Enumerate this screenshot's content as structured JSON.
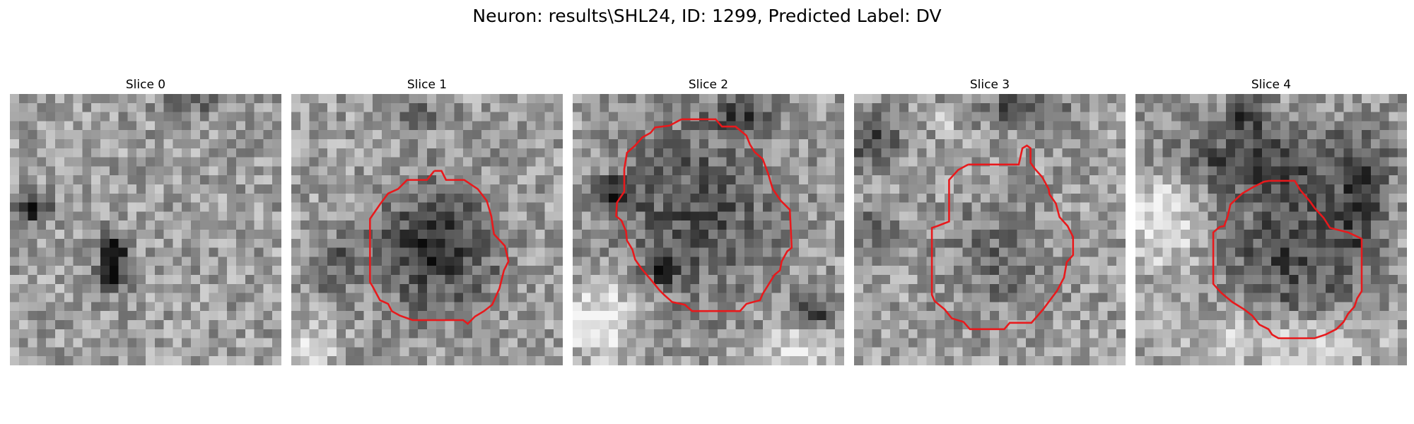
{
  "figure": {
    "title": "Neuron: results\\SHL24, ID: 1299, Predicted Label: DV"
  },
  "slices": [
    {
      "title": "Slice 0",
      "has_contour": false
    },
    {
      "title": "Slice 1",
      "has_contour": true
    },
    {
      "title": "Slice 2",
      "has_contour": true
    },
    {
      "title": "Slice 3",
      "has_contour": true
    },
    {
      "title": "Slice 4",
      "has_contour": true
    }
  ],
  "colors": {
    "contour": "#e8191c",
    "colormap": "grayscale"
  }
}
